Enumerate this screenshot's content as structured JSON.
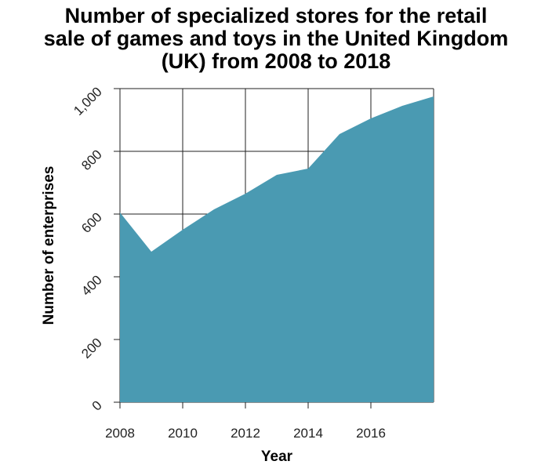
{
  "title_lines": [
    "Number of specialized stores for the retail",
    "sale of games and toys in the United Kingdom",
    "(UK) from 2008 to 2018"
  ],
  "chart_data": {
    "type": "area",
    "title": "Number of specialized stores for the retail sale of games and toys in the United Kingdom (UK) from 2008 to 2018",
    "xlabel": "Year",
    "ylabel": "Number of enterprises",
    "x": [
      2008,
      2009,
      2010,
      2011,
      2012,
      2013,
      2014,
      2015,
      2016,
      2017,
      2018
    ],
    "values": [
      605,
      480,
      550,
      615,
      665,
      725,
      745,
      855,
      905,
      945,
      975
    ],
    "xlim": [
      2008,
      2018
    ],
    "ylim": [
      0,
      1000
    ],
    "x_ticks": [
      2008,
      2010,
      2012,
      2014,
      2016
    ],
    "x_tick_labels": [
      "2008",
      "2010",
      "2012",
      "2014",
      "2016"
    ],
    "y_ticks": [
      0,
      200,
      400,
      600,
      800,
      1000
    ],
    "y_tick_labels": [
      "0",
      "200",
      "400",
      "600",
      "800",
      "1,000"
    ],
    "grid": true,
    "fill_color": "#4a9ab2",
    "grid_color": "#222222"
  }
}
